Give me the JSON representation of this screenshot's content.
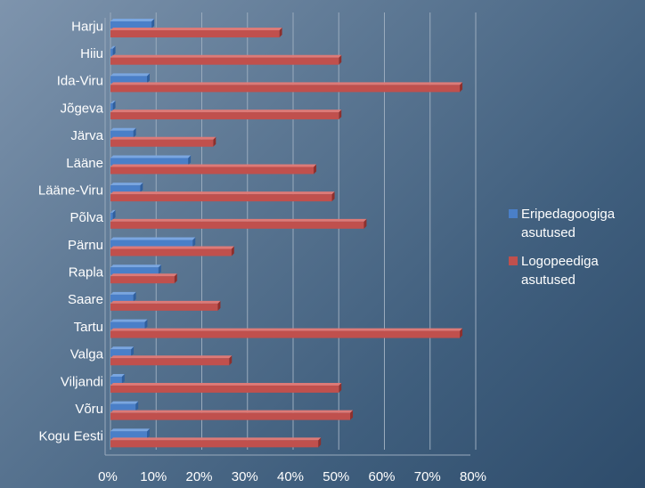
{
  "chart_data": {
    "type": "bar",
    "orientation": "horizontal",
    "categories": [
      "Harju",
      "Hiiu",
      "Ida-Viru",
      "Jõgeva",
      "Järva",
      "Lääne",
      "Lääne-Viru",
      "Põlva",
      "Pärnu",
      "Rapla",
      "Saare",
      "Tartu",
      "Valga",
      "Viljandi",
      "Võru",
      "Kogu Eesti"
    ],
    "series": [
      {
        "name": "Eripedagoogiga asutused",
        "color": "#4a7fc8",
        "values": [
          9,
          0.5,
          8,
          0.5,
          5,
          17,
          6.5,
          0.5,
          18,
          10.5,
          5,
          7.5,
          4.5,
          2.5,
          5.5,
          8
        ]
      },
      {
        "name": "Logopeediga asutused",
        "color": "#c0504d",
        "values": [
          37,
          50,
          76.5,
          50,
          22.5,
          44.5,
          48.5,
          55.5,
          26.5,
          14,
          23.5,
          76.5,
          26,
          50,
          52.5,
          45.5
        ]
      }
    ],
    "x_ticks": [
      "0%",
      "10%",
      "20%",
      "30%",
      "40%",
      "50%",
      "60%",
      "70%",
      "80%"
    ],
    "xlim": [
      0,
      80
    ],
    "grid": true,
    "legend_position": "right"
  }
}
